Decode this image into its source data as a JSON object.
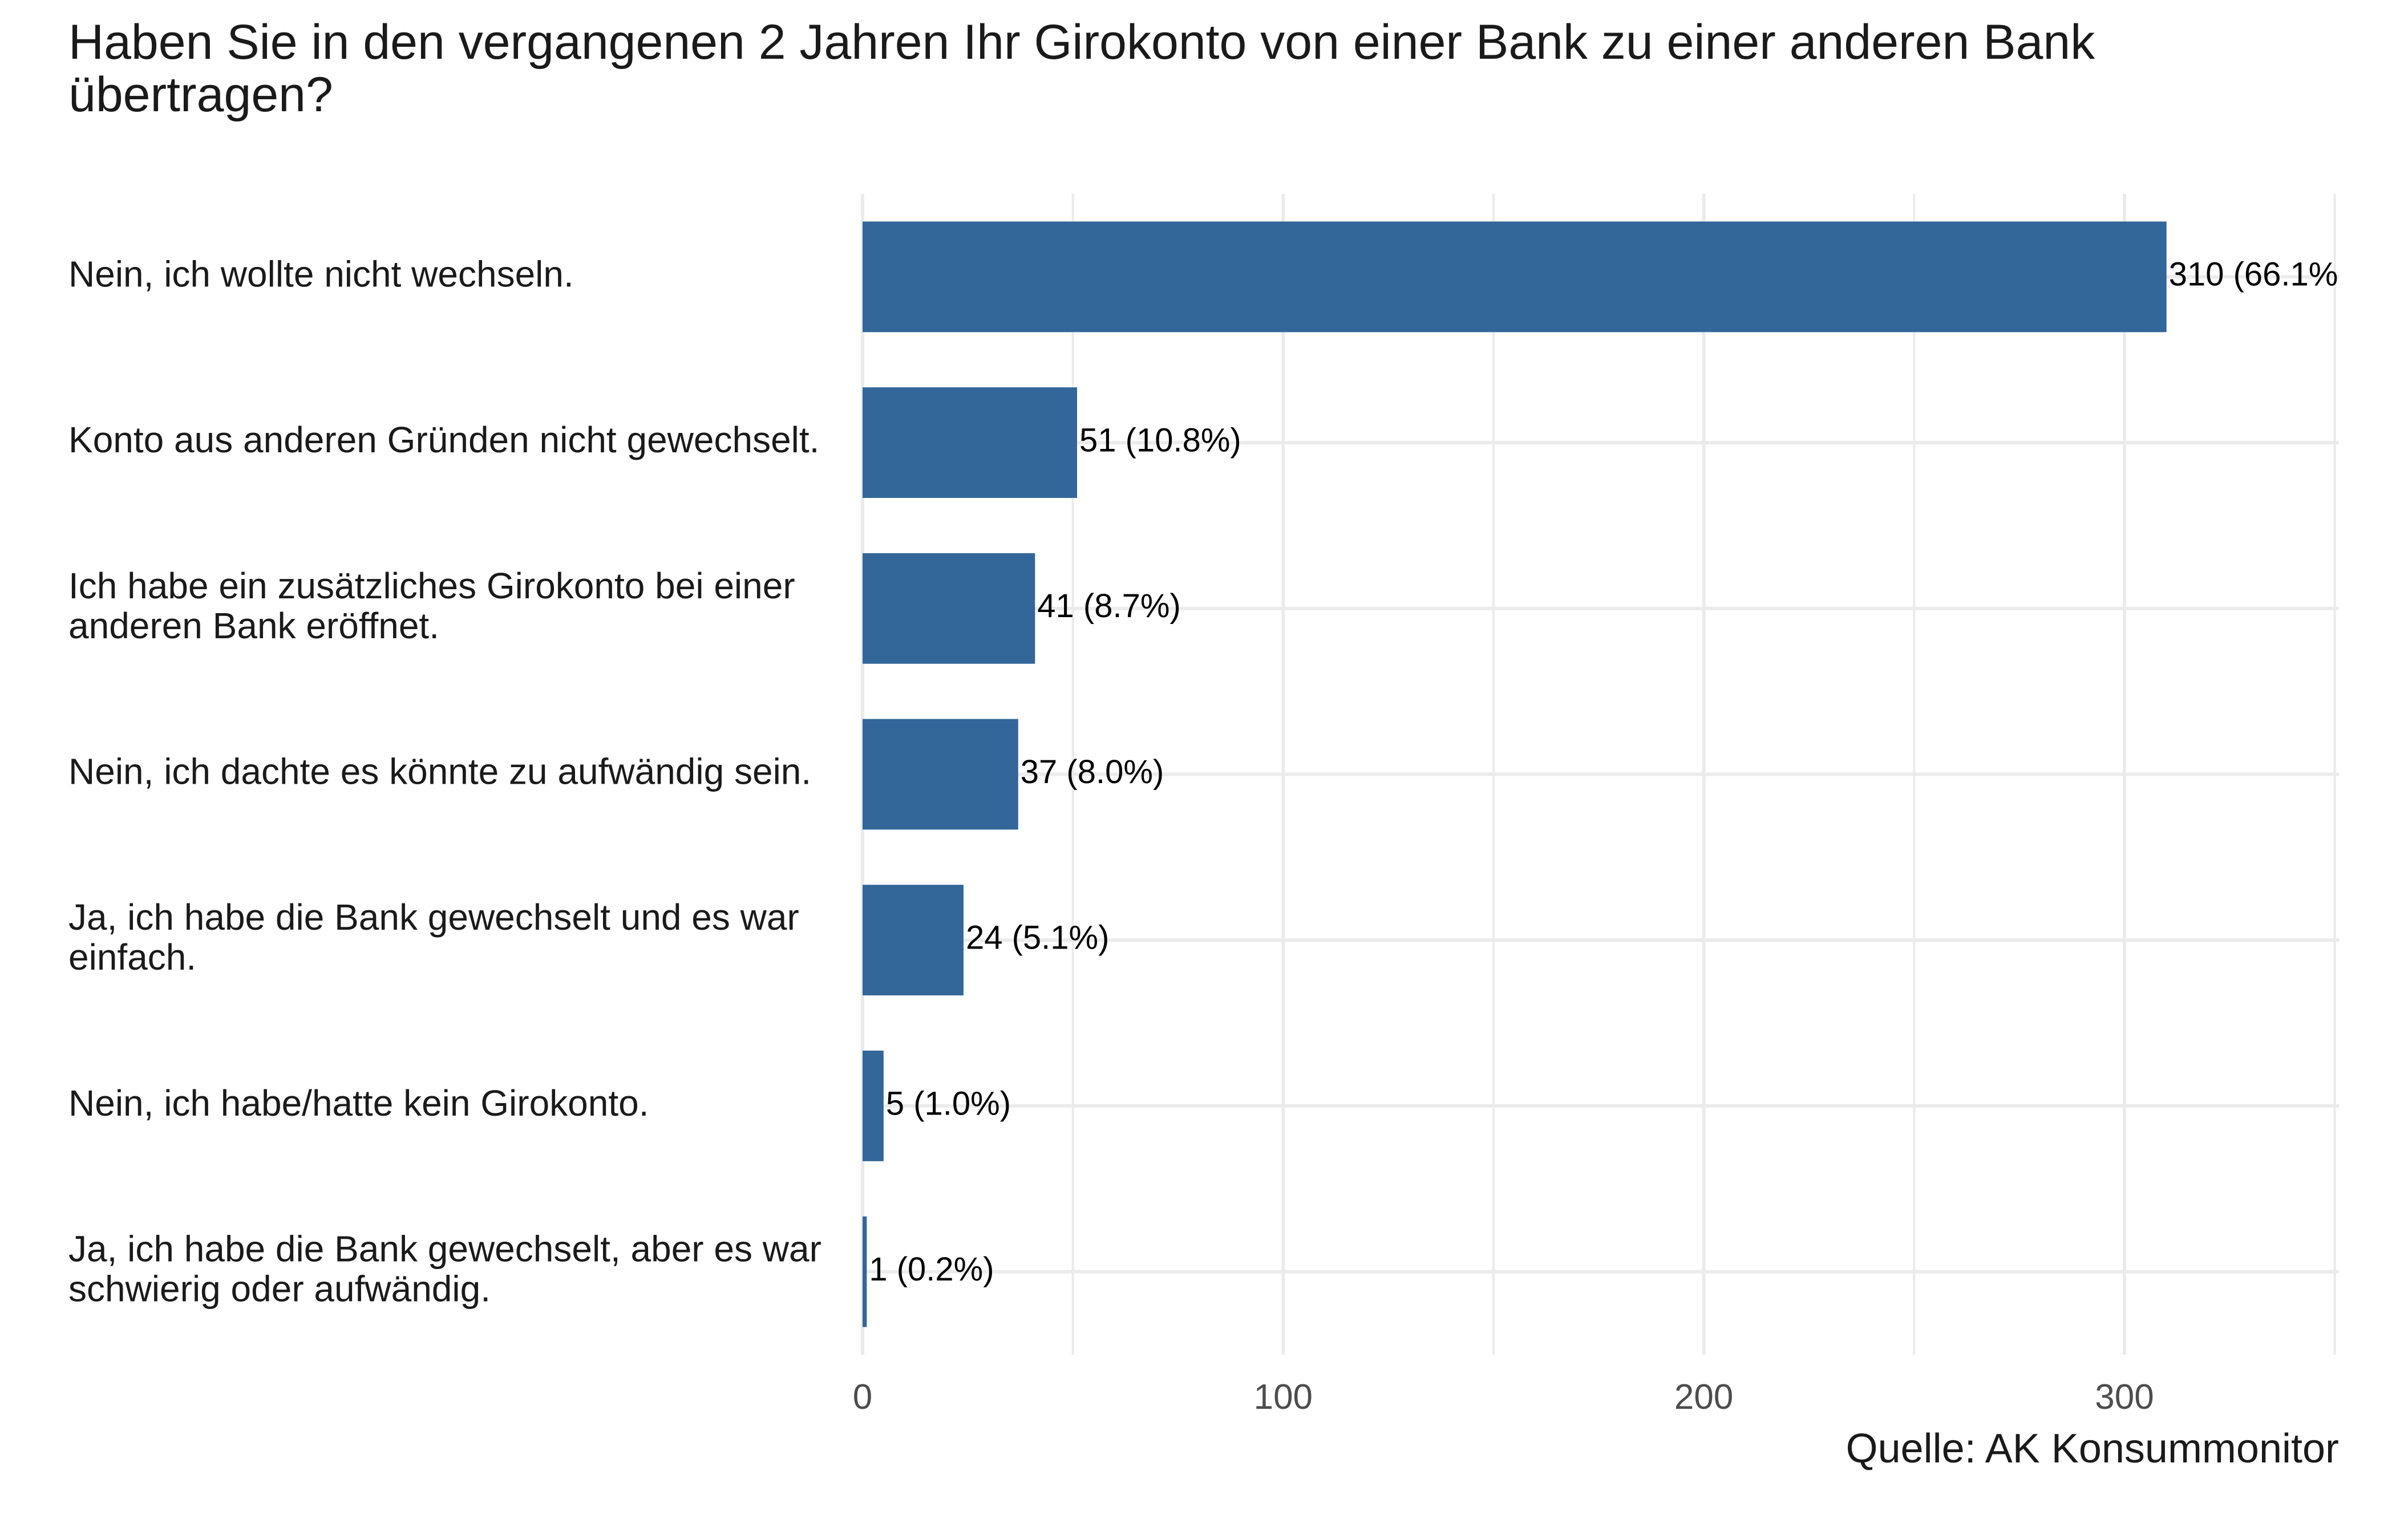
{
  "chart_data": {
    "type": "bar",
    "orientation": "horizontal",
    "title": "Haben Sie in den vergangenen 2 Jahren Ihr Girokonto von einer Bank zu einer anderen Bank übertragen?",
    "caption": "Quelle: AK Konsummonitor",
    "categories": [
      [
        "Nein, ich wollte nicht wechseln."
      ],
      [
        "Konto aus anderen Gründen nicht gewechselt."
      ],
      [
        "Ich habe ein zusätzliches Girokonto bei einer",
        "anderen Bank eröffnet."
      ],
      [
        "Nein, ich dachte es könnte zu aufwändig sein."
      ],
      [
        "Ja, ich habe die Bank gewechselt und es war",
        "einfach."
      ],
      [
        "Nein, ich habe/hatte kein Girokonto."
      ],
      [
        "Ja, ich habe die Bank gewechselt, aber es war",
        "schwierig oder aufwändig."
      ]
    ],
    "values": [
      310,
      51,
      41,
      37,
      24,
      5,
      1
    ],
    "value_labels": [
      "310 (66.1%",
      "51 (10.8%)",
      "41 (8.7%)",
      "37 (8.0%)",
      "24 (5.1%)",
      "5 (1.0%)",
      "1 (0.2%)"
    ],
    "xlim": [
      0,
      351
    ],
    "xticks": [
      0,
      100,
      200,
      300
    ],
    "grid": true,
    "colors": {
      "bar": "#336699",
      "grid": "#ebebeb"
    }
  }
}
